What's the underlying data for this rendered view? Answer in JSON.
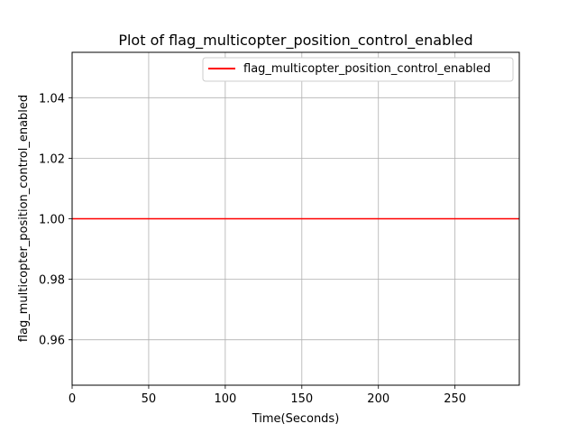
{
  "chart_data": {
    "type": "line",
    "title": "Plot of flag_multicopter_position_control_enabled",
    "xlabel": "Time(Seconds)",
    "ylabel": "flag_multicopter_position_control_enabled",
    "xlim": [
      0,
      292
    ],
    "ylim": [
      0.945,
      1.055
    ],
    "xticks": [
      0,
      50,
      100,
      150,
      200,
      250
    ],
    "xtick_labels": [
      "0",
      "50",
      "100",
      "150",
      "200",
      "250"
    ],
    "yticks": [
      0.96,
      0.98,
      1.0,
      1.02,
      1.04
    ],
    "ytick_labels": [
      "0.96",
      "0.98",
      "1.00",
      "1.02",
      "1.04"
    ],
    "grid": true,
    "legend_position": "top-right",
    "series": [
      {
        "name": "flag_multicopter_position_control_enabled",
        "color": "#ff0000",
        "x": [
          0,
          292
        ],
        "y": [
          1.0,
          1.0
        ]
      }
    ]
  }
}
